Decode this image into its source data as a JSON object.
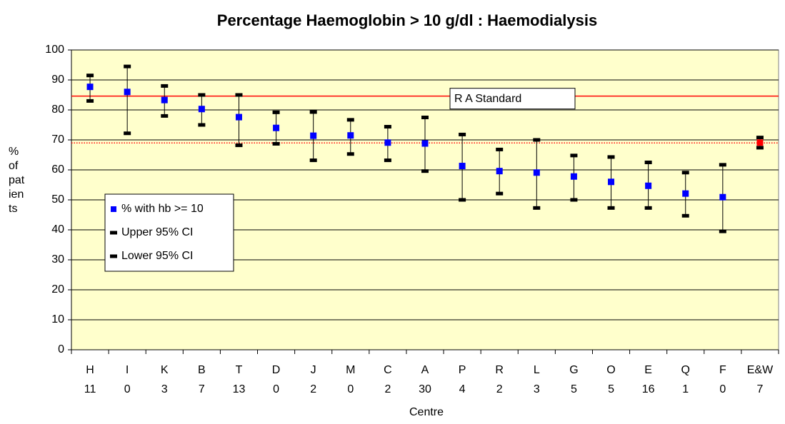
{
  "chart_data": {
    "type": "errorscatter",
    "title": "Percentage Haemoglobin > 10 g/dl : Haemodialysis",
    "x_label": "Centre",
    "y_label": [
      "%",
      "of",
      "pat",
      "ien",
      "ts"
    ],
    "categories": [
      "H",
      "I",
      "K",
      "B",
      "T",
      "D",
      "J",
      "M",
      "C",
      "A",
      "P",
      "R",
      "L",
      "G",
      "O",
      "E",
      "Q",
      "F",
      "E&W"
    ],
    "category_counts": [
      11,
      0,
      3,
      7,
      13,
      0,
      2,
      0,
      2,
      30,
      4,
      2,
      3,
      5,
      5,
      16,
      1,
      0,
      7
    ],
    "series": [
      {
        "name": "% with hb >= 10",
        "color": "#0000ff",
        "point_colors": [
          "#0000ff",
          "#0000ff",
          "#0000ff",
          "#0000ff",
          "#0000ff",
          "#0000ff",
          "#0000ff",
          "#0000ff",
          "#0000ff",
          "#0000ff",
          "#0000ff",
          "#0000ff",
          "#0000ff",
          "#0000ff",
          "#0000ff",
          "#0000ff",
          "#0000ff",
          "#0000ff",
          "#ff0000"
        ],
        "values": [
          87.7,
          86,
          83.3,
          80.3,
          77.6,
          74,
          71.4,
          71.5,
          69.1,
          68.8,
          61.3,
          59.6,
          59.1,
          57.8,
          56,
          54.7,
          52.1,
          50.9,
          69.1
        ]
      },
      {
        "name": "Upper 95% CI",
        "color": "#000000",
        "values": [
          91.5,
          94.5,
          88,
          85,
          85,
          79.2,
          79.3,
          76.7,
          74.4,
          77.5,
          71.8,
          66.8,
          70,
          64.8,
          64.3,
          62.5,
          59.1,
          61.7,
          70.8
        ]
      },
      {
        "name": "Lower 95% CI",
        "color": "#000000",
        "values": [
          83,
          72.2,
          78,
          75,
          68.2,
          68.7,
          63.2,
          65.3,
          63.2,
          59.6,
          50,
          52.1,
          47.3,
          50,
          47.3,
          47.3,
          44.7,
          39.5,
          67.4
        ]
      }
    ],
    "standard": {
      "label": "R A Standard",
      "value": 84.6,
      "color": "#ff0000"
    },
    "average": {
      "value": 69,
      "color": "#ff0000"
    },
    "ylim": [
      0,
      100
    ],
    "yticks": [
      0,
      10,
      20,
      30,
      40,
      50,
      60,
      70,
      80,
      90,
      100
    ],
    "grid": true,
    "background": "#ffffcc"
  }
}
